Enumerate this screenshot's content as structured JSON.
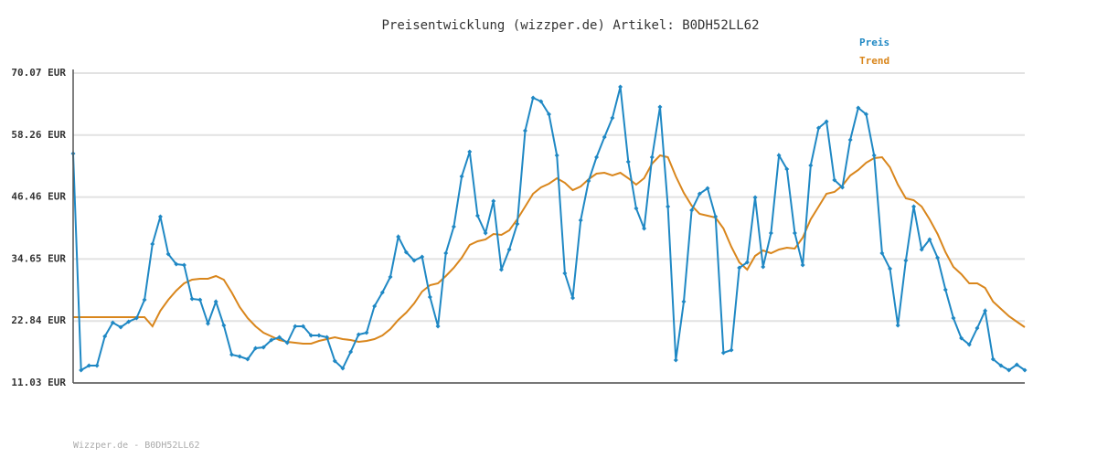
{
  "chart_data": {
    "type": "line",
    "title": "Preisentwicklung (wizzper.de) Artikel: B0DH52LL62",
    "footer": "Wizzper.de - B0DH52LL62",
    "ylim": [
      11.03,
      70.07
    ],
    "yticks": [
      {
        "value": 11.03,
        "label": "11.03 EUR"
      },
      {
        "value": 22.84,
        "label": "22.84 EUR"
      },
      {
        "value": 34.65,
        "label": "34.65 EUR"
      },
      {
        "value": 46.46,
        "label": "46.46 EUR"
      },
      {
        "value": 58.26,
        "label": "58.26 EUR"
      },
      {
        "value": 70.07,
        "label": "70.07 EUR"
      }
    ],
    "grid": true,
    "legend": "top-right",
    "series": [
      {
        "name": "Preis",
        "color": "#1f88c4",
        "markers": true,
        "values": [
          54.74,
          13.47,
          14.34,
          14.34,
          19.91,
          22.52,
          21.65,
          22.7,
          23.39,
          26.88,
          37.5,
          42.72,
          35.58,
          33.67,
          33.49,
          27.05,
          26.88,
          22.35,
          26.53,
          22.0,
          16.43,
          16.08,
          15.56,
          17.65,
          17.82,
          19.21,
          19.73,
          18.69,
          21.82,
          21.82,
          20.08,
          20.08,
          19.73,
          15.21,
          13.81,
          16.95,
          20.26,
          20.61,
          25.66,
          28.27,
          31.23,
          38.89,
          35.93,
          34.36,
          35.06,
          27.4,
          21.82,
          35.76,
          40.81,
          50.39,
          55.09,
          42.9,
          39.59,
          45.68,
          32.62,
          36.45,
          41.33,
          59.1,
          65.36,
          64.67,
          62.23,
          54.39,
          31.93,
          27.22,
          42.03,
          49.52,
          54.04,
          57.88,
          61.53,
          67.45,
          53.17,
          44.29,
          40.46,
          54.04,
          63.62,
          44.64,
          15.38,
          26.53,
          43.94,
          47.08,
          48.12,
          42.72,
          16.77,
          17.3,
          32.97,
          34.02,
          46.38,
          33.15,
          39.59,
          54.39,
          51.78,
          39.59,
          33.49,
          52.48,
          59.62,
          60.84,
          49.69,
          48.3,
          57.35,
          63.45,
          62.23,
          54.39,
          35.76,
          32.8,
          22.0,
          34.36,
          44.64,
          36.45,
          38.37,
          34.89,
          28.79,
          23.39,
          19.56,
          18.34,
          21.48,
          24.79,
          15.56,
          14.34,
          13.47,
          14.51,
          13.47
        ]
      },
      {
        "name": "Trend",
        "color": "#d9861c",
        "markers": false,
        "values": [
          23.57,
          23.57,
          23.57,
          23.57,
          23.57,
          23.57,
          23.57,
          23.57,
          23.57,
          23.57,
          21.83,
          24.79,
          26.88,
          28.62,
          30.01,
          30.71,
          30.88,
          30.88,
          31.41,
          30.71,
          28.27,
          25.48,
          23.39,
          21.83,
          20.61,
          19.91,
          19.21,
          18.86,
          18.69,
          18.52,
          18.52,
          19.04,
          19.39,
          19.73,
          19.39,
          19.21,
          18.86,
          19.04,
          19.39,
          20.08,
          21.3,
          23.05,
          24.44,
          26.18,
          28.44,
          29.66,
          30.01,
          31.41,
          32.97,
          34.89,
          37.33,
          38.02,
          38.37,
          39.42,
          39.25,
          40.11,
          42.2,
          44.64,
          47.08,
          48.3,
          48.99,
          50.04,
          49.17,
          47.78,
          48.47,
          49.87,
          50.91,
          51.09,
          50.56,
          51.09,
          50.04,
          48.82,
          50.04,
          52.83,
          54.39,
          54.04,
          50.39,
          47.25,
          44.82,
          43.25,
          42.9,
          42.55,
          40.46,
          36.98,
          34.02,
          32.62,
          35.24,
          36.28,
          35.76,
          36.45,
          36.8,
          36.63,
          38.72,
          42.2,
          44.64,
          47.08,
          47.43,
          48.65,
          50.56,
          51.61,
          53.0,
          53.87,
          54.04,
          52.13,
          48.82,
          46.21,
          45.86,
          44.64,
          42.2,
          39.42,
          35.93,
          33.15,
          31.76,
          30.01,
          30.01,
          29.14,
          26.53,
          25.14,
          23.74,
          22.7,
          21.65
        ]
      }
    ]
  }
}
